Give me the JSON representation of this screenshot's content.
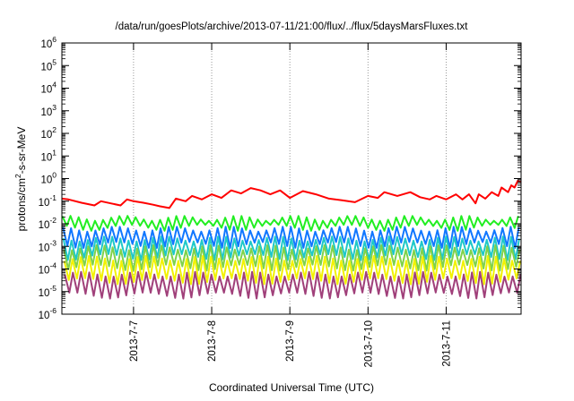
{
  "chart_data": {
    "type": "line",
    "title": "/data/run/goesPlots/archive/2013-07-11/21:00/flux/../flux/5daysMarsFluxes.txt",
    "xlabel": "Coordinated Universal Time (UTC)",
    "ylabel": "protons/cm²-s-sr-MeV",
    "ylabel_parts": {
      "pre": "protons/cm",
      "sup": "2",
      "post": "-s-sr-MeV"
    },
    "yscale": "log",
    "ylim": [
      1e-06,
      1000000.0
    ],
    "y_ticks": [
      {
        "exp": "-6",
        "value": 1e-06
      },
      {
        "exp": "-5",
        "value": 1e-05
      },
      {
        "exp": "-4",
        "value": 0.0001
      },
      {
        "exp": "-3",
        "value": 0.001
      },
      {
        "exp": "-2",
        "value": 0.01
      },
      {
        "exp": "-1",
        "value": 0.1
      },
      {
        "exp": "0",
        "value": 1
      },
      {
        "exp": "1",
        "value": 10
      },
      {
        "exp": "2",
        "value": 100
      },
      {
        "exp": "3",
        "value": 1000
      },
      {
        "exp": "4",
        "value": 10000
      },
      {
        "exp": "5",
        "value": 100000
      },
      {
        "exp": "6",
        "value": 1000000
      }
    ],
    "y_tick_base": "10",
    "xlim": [
      "2013-07-06T02:00",
      "2013-07-11T23:00"
    ],
    "x_ticks": [
      {
        "label": "2013-7-7",
        "date": "2013-07-07"
      },
      {
        "label": "2013-7-8",
        "date": "2013-07-08"
      },
      {
        "label": "2013-7-9",
        "date": "2013-07-09"
      },
      {
        "label": "2013-7-10",
        "date": "2013-07-10"
      },
      {
        "label": "2013-7-11",
        "date": "2013-07-11"
      }
    ],
    "grid": true,
    "legend": "none",
    "series": [
      {
        "color": "#ff0000",
        "points": [
          [
            "2013-07-06T02:00",
            0.13
          ],
          [
            "2013-07-06T04:00",
            0.12
          ],
          [
            "2013-07-06T08:00",
            0.085
          ],
          [
            "2013-07-06T12:00",
            0.065
          ],
          [
            "2013-07-06T14:00",
            0.1
          ],
          [
            "2013-07-06T17:00",
            0.08
          ],
          [
            "2013-07-06T20:00",
            0.065
          ],
          [
            "2013-07-06T22:00",
            0.12
          ],
          [
            "2013-07-07T00:00",
            0.1
          ],
          [
            "2013-07-07T03:00",
            0.085
          ],
          [
            "2013-07-07T06:00",
            0.07
          ],
          [
            "2013-07-07T08:00",
            0.06
          ],
          [
            "2013-07-07T11:00",
            0.05
          ],
          [
            "2013-07-07T13:00",
            0.13
          ],
          [
            "2013-07-07T16:00",
            0.1
          ],
          [
            "2013-07-07T18:00",
            0.17
          ],
          [
            "2013-07-07T21:00",
            0.12
          ],
          [
            "2013-07-08T00:00",
            0.2
          ],
          [
            "2013-07-08T03:00",
            0.14
          ],
          [
            "2013-07-08T06:00",
            0.3
          ],
          [
            "2013-07-08T09:00",
            0.22
          ],
          [
            "2013-07-08T12:00",
            0.38
          ],
          [
            "2013-07-08T15:00",
            0.3
          ],
          [
            "2013-07-08T18:00",
            0.2
          ],
          [
            "2013-07-08T21:00",
            0.3
          ],
          [
            "2013-07-09T00:00",
            0.14
          ],
          [
            "2013-07-09T04:00",
            0.28
          ],
          [
            "2013-07-09T08:00",
            0.2
          ],
          [
            "2013-07-09T12:00",
            0.13
          ],
          [
            "2013-07-09T16:00",
            0.11
          ],
          [
            "2013-07-09T20:00",
            0.09
          ],
          [
            "2013-07-10T00:00",
            0.17
          ],
          [
            "2013-07-10T03:00",
            0.14
          ],
          [
            "2013-07-10T05:00",
            0.25
          ],
          [
            "2013-07-10T09:00",
            0.17
          ],
          [
            "2013-07-10T13:00",
            0.25
          ],
          [
            "2013-07-10T16:00",
            0.15
          ],
          [
            "2013-07-10T19:00",
            0.12
          ],
          [
            "2013-07-10T21:00",
            0.17
          ],
          [
            "2013-07-11T00:00",
            0.12
          ],
          [
            "2013-07-11T03:00",
            0.2
          ],
          [
            "2013-07-11T05:00",
            0.12
          ],
          [
            "2013-07-11T07:00",
            0.2
          ],
          [
            "2013-07-11T09:00",
            0.08
          ],
          [
            "2013-07-11T10:00",
            0.2
          ],
          [
            "2013-07-11T12:00",
            0.13
          ],
          [
            "2013-07-11T14:00",
            0.25
          ],
          [
            "2013-07-11T16:00",
            0.17
          ],
          [
            "2013-07-11T17:00",
            0.4
          ],
          [
            "2013-07-11T19:00",
            0.25
          ],
          [
            "2013-07-11T20:00",
            0.5
          ],
          [
            "2013-07-11T21:00",
            0.4
          ],
          [
            "2013-07-11T22:00",
            0.8
          ],
          [
            "2013-07-11T23:00",
            0.7
          ]
        ]
      },
      {
        "color": "#22ee22",
        "top": 0.018,
        "bottom": 0.007
      },
      {
        "color": "#1177ff",
        "top": 0.006,
        "bottom": 0.0012
      },
      {
        "color": "#1ec8c8",
        "top": 0.0022,
        "bottom": 0.00035
      },
      {
        "color": "#7fd24a",
        "top": 0.0009,
        "bottom": 0.00012
      },
      {
        "color": "#f2f200",
        "top": 0.0003,
        "bottom": 3e-05
      },
      {
        "color": "#a0407a",
        "top": 6e-05,
        "bottom": 7e-06
      }
    ]
  }
}
